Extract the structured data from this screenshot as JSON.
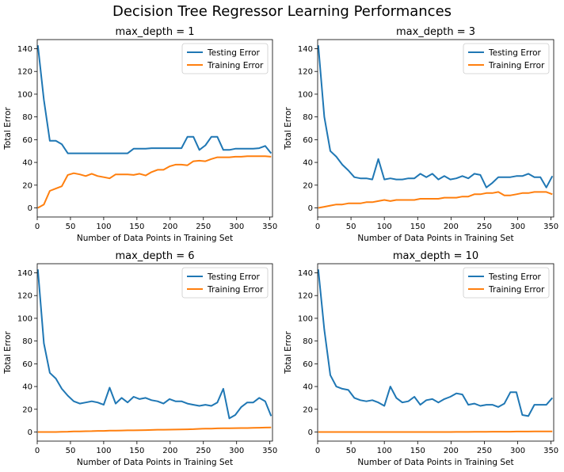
{
  "figure": {
    "title": "Decision Tree Regressor Learning Performances"
  },
  "colors": {
    "testing": "#1f77b4",
    "training": "#ff7f0e"
  },
  "chart_data": [
    {
      "type": "line",
      "title": "max_depth = 1",
      "xlabel": "Number of Data Points in Training Set",
      "ylabel": "Total Error",
      "xlim": [
        0,
        354
      ],
      "ylim": [
        -8,
        148
      ],
      "xticks": [
        0,
        50,
        100,
        150,
        200,
        250,
        300,
        350
      ],
      "yticks": [
        0,
        20,
        40,
        60,
        80,
        100,
        120,
        140
      ],
      "legend": "top-right",
      "x": [
        1,
        10,
        19,
        28,
        37,
        46,
        55,
        64,
        73,
        82,
        91,
        100,
        109,
        118,
        127,
        136,
        145,
        154,
        163,
        172,
        181,
        190,
        199,
        208,
        217,
        226,
        235,
        244,
        253,
        262,
        271,
        280,
        289,
        298,
        307,
        316,
        325,
        334,
        343,
        352
      ],
      "series": [
        {
          "name": "Testing Error",
          "values": [
            143,
            95,
            59,
            59,
            56,
            48,
            48,
            48,
            48,
            48,
            48,
            48,
            48,
            48,
            48,
            48,
            52,
            52,
            52,
            52.5,
            52.5,
            52.5,
            52.5,
            52.5,
            52.5,
            62.5,
            62.5,
            51,
            55,
            62.5,
            62.5,
            51,
            51,
            52,
            52,
            52,
            52,
            52.5,
            54.5,
            48
          ]
        },
        {
          "name": "Training Error",
          "values": [
            0,
            3,
            15,
            17,
            19,
            29,
            30.5,
            29.5,
            28,
            30,
            28,
            27,
            26,
            29.5,
            29.5,
            29.5,
            29,
            30,
            28.5,
            31.5,
            33.5,
            33.5,
            36.5,
            38,
            38,
            37.5,
            41,
            41.5,
            41,
            43,
            44.5,
            44.5,
            44.5,
            45,
            45,
            45.5,
            45.5,
            45.5,
            45.5,
            45
          ]
        }
      ]
    },
    {
      "type": "line",
      "title": "max_depth = 3",
      "xlabel": "Number of Data Points in Training Set",
      "ylabel": "Total Error",
      "xlim": [
        0,
        354
      ],
      "ylim": [
        -8,
        148
      ],
      "xticks": [
        0,
        50,
        100,
        150,
        200,
        250,
        300,
        350
      ],
      "yticks": [
        0,
        20,
        40,
        60,
        80,
        100,
        120,
        140
      ],
      "legend": "top-right",
      "x": [
        1,
        10,
        19,
        28,
        37,
        46,
        55,
        64,
        73,
        82,
        91,
        100,
        109,
        118,
        127,
        136,
        145,
        154,
        163,
        172,
        181,
        190,
        199,
        208,
        217,
        226,
        235,
        244,
        253,
        262,
        271,
        280,
        289,
        298,
        307,
        316,
        325,
        334,
        343,
        352
      ],
      "series": [
        {
          "name": "Testing Error",
          "values": [
            143,
            80,
            50,
            45,
            38,
            33,
            27,
            26,
            26,
            25,
            43,
            25,
            26,
            25,
            25,
            26,
            26,
            30,
            27,
            30,
            25,
            28,
            25,
            26,
            28,
            26,
            30,
            29,
            18,
            22,
            27,
            27,
            27,
            28,
            28,
            30,
            27,
            27,
            18,
            28
          ]
        },
        {
          "name": "Training Error",
          "values": [
            0,
            1,
            2,
            3,
            3,
            4,
            4,
            4,
            5,
            5,
            6,
            7,
            6,
            7,
            7,
            7,
            7,
            8,
            8,
            8,
            8,
            9,
            9,
            9,
            10,
            10,
            12,
            12,
            13,
            13,
            14,
            11,
            11,
            12,
            13,
            13,
            14,
            14,
            14,
            12
          ]
        }
      ]
    },
    {
      "type": "line",
      "title": "max_depth = 6",
      "xlabel": "Number of Data Points in Training Set",
      "ylabel": "Total Error",
      "xlim": [
        0,
        354
      ],
      "ylim": [
        -8,
        148
      ],
      "xticks": [
        0,
        50,
        100,
        150,
        200,
        250,
        300,
        350
      ],
      "yticks": [
        0,
        20,
        40,
        60,
        80,
        100,
        120,
        140
      ],
      "legend": "top-right",
      "x": [
        1,
        10,
        19,
        28,
        37,
        46,
        55,
        64,
        73,
        82,
        91,
        100,
        109,
        118,
        127,
        136,
        145,
        154,
        163,
        172,
        181,
        190,
        199,
        208,
        217,
        226,
        235,
        244,
        253,
        262,
        271,
        280,
        289,
        298,
        307,
        316,
        325,
        334,
        343,
        352
      ],
      "series": [
        {
          "name": "Testing Error",
          "values": [
            143,
            78,
            52,
            47,
            38,
            32,
            27,
            25,
            26,
            27,
            26,
            24,
            39,
            25,
            30,
            26,
            31,
            29,
            30,
            28,
            27,
            25,
            29,
            27,
            27,
            25,
            24,
            23,
            24,
            23,
            26,
            38,
            12,
            15,
            22,
            26,
            26,
            30,
            27,
            14
          ]
        },
        {
          "name": "Training Error",
          "values": [
            0,
            0,
            0,
            0,
            0.2,
            0.3,
            0.5,
            0.5,
            0.7,
            0.8,
            1,
            1,
            1.2,
            1.2,
            1.3,
            1.5,
            1.5,
            1.6,
            1.7,
            1.8,
            2,
            2,
            2.1,
            2.2,
            2.3,
            2.4,
            2.5,
            2.8,
            3,
            3,
            3.2,
            3.3,
            3.3,
            3.4,
            3.5,
            3.5,
            3.6,
            3.8,
            3.9,
            4
          ]
        }
      ]
    },
    {
      "type": "line",
      "title": "max_depth = 10",
      "xlabel": "Number of Data Points in Training Set",
      "ylabel": "Total Error",
      "xlim": [
        0,
        354
      ],
      "ylim": [
        -8,
        148
      ],
      "xticks": [
        0,
        50,
        100,
        150,
        200,
        250,
        300,
        350
      ],
      "yticks": [
        0,
        20,
        40,
        60,
        80,
        100,
        120,
        140
      ],
      "legend": "top-right",
      "x": [
        1,
        10,
        19,
        28,
        37,
        46,
        55,
        64,
        73,
        82,
        91,
        100,
        109,
        118,
        127,
        136,
        145,
        154,
        163,
        172,
        181,
        190,
        199,
        208,
        217,
        226,
        235,
        244,
        253,
        262,
        271,
        280,
        289,
        298,
        307,
        316,
        325,
        334,
        343,
        352
      ],
      "series": [
        {
          "name": "Testing Error",
          "values": [
            143,
            90,
            50,
            40,
            38,
            37,
            30,
            28,
            27,
            28,
            26,
            23,
            40,
            30,
            26,
            27,
            31,
            24,
            28,
            29,
            26,
            29,
            31,
            34,
            33,
            24,
            25,
            23,
            24,
            24,
            22,
            25,
            35,
            35,
            15,
            14,
            24,
            24,
            24,
            30
          ]
        },
        {
          "name": "Training Error",
          "values": [
            0,
            0,
            0,
            0,
            0,
            0,
            0,
            0,
            0,
            0,
            0,
            0,
            0,
            0,
            0,
            0,
            0,
            0,
            0,
            0,
            0,
            0,
            0,
            0.1,
            0.1,
            0.1,
            0.2,
            0.2,
            0.2,
            0.3,
            0.3,
            0.3,
            0.3,
            0.4,
            0.4,
            0.4,
            0.5,
            0.5,
            0.5,
            0.5
          ]
        }
      ]
    }
  ]
}
